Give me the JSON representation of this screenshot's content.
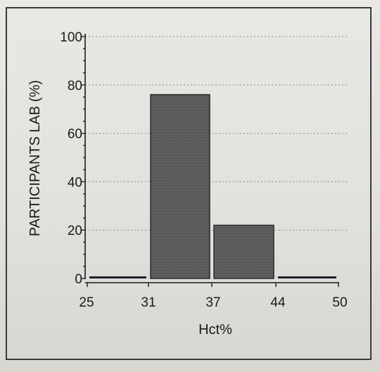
{
  "chart_data": {
    "type": "bar",
    "title": "",
    "xlabel": "Hct%",
    "ylabel": "PARTICIPANTS LAB  (%)",
    "x_ticks": [
      "25",
      "31",
      "37",
      "44",
      "50"
    ],
    "categories": [
      "25-31",
      "31-37",
      "37-44",
      "44-50"
    ],
    "values": [
      0,
      76,
      22,
      0
    ],
    "ylim": [
      0,
      100
    ],
    "y_ticks": [
      "0",
      "20",
      "40",
      "60",
      "80",
      "100"
    ],
    "grid": "horizontal dotted",
    "colors": {
      "bar": "#5a5a5a",
      "axis": "#1a1a1a",
      "grid": "#8a8a8a",
      "zero_bar": "#1c1f2e"
    }
  }
}
